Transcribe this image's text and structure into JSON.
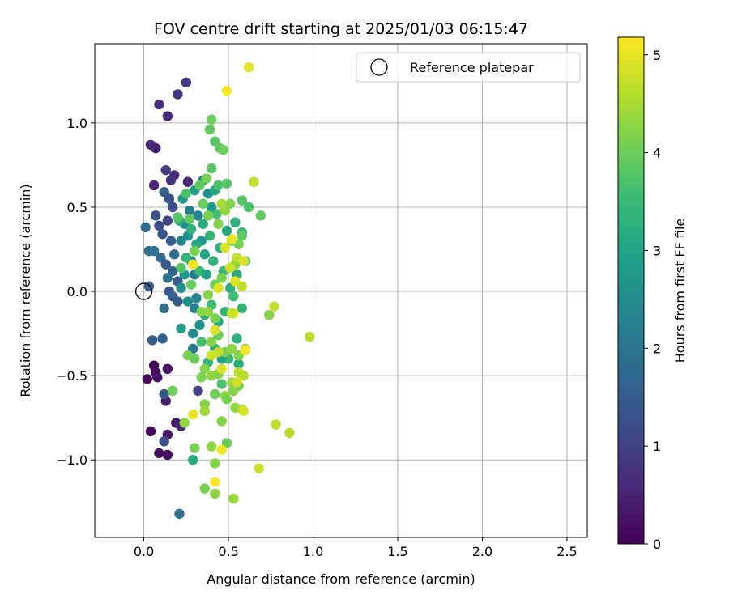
{
  "chart_data": {
    "type": "scatter",
    "title": "FOV centre drift starting at 2025/01/03 06:15:47",
    "xlabel": "Angular distance from reference (arcmin)",
    "ylabel": "Rotation from reference (arcmin)",
    "xlim": [
      -0.29,
      2.62
    ],
    "ylim": [
      -1.46,
      1.47
    ],
    "xticks": [
      0.0,
      0.5,
      1.0,
      1.5,
      2.0,
      2.5
    ],
    "xtick_labels": [
      "0.0",
      "0.5",
      "1.0",
      "1.5",
      "2.0",
      "2.5"
    ],
    "yticks": [
      -1.0,
      -0.5,
      0.0,
      0.5,
      1.0
    ],
    "ytick_labels": [
      "−1.0",
      "−0.5",
      "0.0",
      "0.5",
      "1.0"
    ],
    "grid": true,
    "legend": {
      "position": "top-right",
      "entries": [
        "Reference platepar"
      ]
    },
    "reference_point": {
      "x": 0.0,
      "y": 0.0,
      "marker": "open-circle",
      "label": "Reference platepar"
    },
    "colorbar": {
      "label": "Hours from first FF file",
      "min": 0,
      "max": 5.18,
      "ticks": [
        0,
        1,
        2,
        3,
        4,
        5
      ],
      "tick_labels": [
        "0",
        "1",
        "2",
        "3",
        "4",
        "5"
      ],
      "colormap": "viridis",
      "stops": [
        "#440154",
        "#482878",
        "#3e4a89",
        "#31688e",
        "#26828e",
        "#1f9e89",
        "#35b779",
        "#6ece58",
        "#b5de2b",
        "#fde725"
      ]
    },
    "points": [
      {
        "x": 0.02,
        "y": -0.52,
        "t": 0.1
      },
      {
        "x": 0.06,
        "y": -0.44,
        "t": 0.05
      },
      {
        "x": 0.07,
        "y": -0.48,
        "t": 0.15
      },
      {
        "x": 0.08,
        "y": -0.51,
        "t": 0.2
      },
      {
        "x": 0.14,
        "y": -0.46,
        "t": 0.25
      },
      {
        "x": 0.04,
        "y": -0.83,
        "t": 0.1
      },
      {
        "x": 0.09,
        "y": -0.96,
        "t": 0.15
      },
      {
        "x": 0.14,
        "y": -0.97,
        "t": 0.2
      },
      {
        "x": 0.14,
        "y": -0.85,
        "t": 0.3
      },
      {
        "x": 0.19,
        "y": -0.78,
        "t": 0.35
      },
      {
        "x": 0.13,
        "y": -0.65,
        "t": 0.4
      },
      {
        "x": 0.22,
        "y": -0.8,
        "t": 0.5
      },
      {
        "x": 0.12,
        "y": -0.89,
        "t": 1.2
      },
      {
        "x": 0.12,
        "y": -0.61,
        "t": 1.4
      },
      {
        "x": 0.21,
        "y": -1.32,
        "t": 1.9
      },
      {
        "x": 0.32,
        "y": -0.59,
        "t": 1.0
      },
      {
        "x": 0.05,
        "y": -0.29,
        "t": 1.5
      },
      {
        "x": 0.11,
        "y": -0.28,
        "t": 1.6
      },
      {
        "x": 0.04,
        "y": 0.87,
        "t": 0.6
      },
      {
        "x": 0.07,
        "y": 0.85,
        "t": 0.5
      },
      {
        "x": 0.09,
        "y": 1.11,
        "t": 0.7
      },
      {
        "x": 0.14,
        "y": 1.04,
        "t": 0.6
      },
      {
        "x": 0.2,
        "y": 1.17,
        "t": 0.8
      },
      {
        "x": 0.25,
        "y": 1.24,
        "t": 0.9
      },
      {
        "x": 0.06,
        "y": 0.63,
        "t": 0.6
      },
      {
        "x": 0.13,
        "y": 0.72,
        "t": 0.9
      },
      {
        "x": 0.16,
        "y": 0.66,
        "t": 0.8
      },
      {
        "x": 0.18,
        "y": 0.69,
        "t": 0.7
      },
      {
        "x": 0.26,
        "y": 0.65,
        "t": 0.6
      },
      {
        "x": 0.01,
        "y": 0.38,
        "t": 1.8
      },
      {
        "x": 0.03,
        "y": 0.24,
        "t": 1.9
      },
      {
        "x": 0.06,
        "y": 0.24,
        "t": 2.0
      },
      {
        "x": 0.07,
        "y": 0.45,
        "t": 1.3
      },
      {
        "x": 0.09,
        "y": 0.39,
        "t": 1.2
      },
      {
        "x": 0.11,
        "y": 0.34,
        "t": 1.4
      },
      {
        "x": 0.12,
        "y": 0.59,
        "t": 1.6
      },
      {
        "x": 0.14,
        "y": 0.42,
        "t": 1.1
      },
      {
        "x": 0.15,
        "y": 0.55,
        "t": 1.3
      },
      {
        "x": 0.16,
        "y": 0.3,
        "t": 1.5
      },
      {
        "x": 0.17,
        "y": 0.5,
        "t": 1.2
      },
      {
        "x": 0.1,
        "y": 0.2,
        "t": 1.7
      },
      {
        "x": 0.13,
        "y": 0.16,
        "t": 1.4
      },
      {
        "x": 0.17,
        "y": 0.12,
        "t": 1.6
      },
      {
        "x": 0.18,
        "y": 0.22,
        "t": 1.8
      },
      {
        "x": 0.2,
        "y": 0.06,
        "t": 1.5
      },
      {
        "x": 0.15,
        "y": 0.0,
        "t": 1.3
      },
      {
        "x": 0.17,
        "y": -0.03,
        "t": 1.6
      },
      {
        "x": 0.12,
        "y": -0.1,
        "t": 1.9
      },
      {
        "x": 0.2,
        "y": -0.06,
        "t": 1.4
      },
      {
        "x": 0.14,
        "y": 0.08,
        "t": 2.0
      },
      {
        "x": 0.03,
        "y": 0.03,
        "t": 1.6
      },
      {
        "x": 0.22,
        "y": 0.3,
        "t": 2.3
      },
      {
        "x": 0.24,
        "y": 0.4,
        "t": 2.5
      },
      {
        "x": 0.23,
        "y": 0.55,
        "t": 2.7
      },
      {
        "x": 0.26,
        "y": 0.33,
        "t": 2.6
      },
      {
        "x": 0.27,
        "y": 0.48,
        "t": 2.2
      },
      {
        "x": 0.28,
        "y": 0.18,
        "t": 2.4
      },
      {
        "x": 0.24,
        "y": 0.1,
        "t": 2.8
      },
      {
        "x": 0.3,
        "y": 0.6,
        "t": 2.9
      },
      {
        "x": 0.32,
        "y": 0.45,
        "t": 2.3
      },
      {
        "x": 0.34,
        "y": 0.3,
        "t": 2.7
      },
      {
        "x": 0.35,
        "y": 0.66,
        "t": 2.5
      },
      {
        "x": 0.36,
        "y": 0.22,
        "t": 3.0
      },
      {
        "x": 0.38,
        "y": 0.58,
        "t": 2.6
      },
      {
        "x": 0.4,
        "y": 0.5,
        "t": 2.8
      },
      {
        "x": 0.42,
        "y": 0.6,
        "t": 3.1
      },
      {
        "x": 0.26,
        "y": -0.06,
        "t": 2.6
      },
      {
        "x": 0.3,
        "y": -0.1,
        "t": 2.2
      },
      {
        "x": 0.22,
        "y": -0.22,
        "t": 2.9
      },
      {
        "x": 0.29,
        "y": -0.25,
        "t": 2.5
      },
      {
        "x": 0.33,
        "y": -0.2,
        "t": 2.7
      },
      {
        "x": 0.29,
        "y": -0.34,
        "t": 2.1
      },
      {
        "x": 0.31,
        "y": -0.04,
        "t": 2.4
      },
      {
        "x": 0.22,
        "y": 0.02,
        "t": 2.6
      },
      {
        "x": 0.3,
        "y": 0.1,
        "t": 2.1
      },
      {
        "x": 0.21,
        "y": 0.42,
        "t": 3.2
      },
      {
        "x": 0.25,
        "y": 0.2,
        "t": 3.4
      },
      {
        "x": 0.28,
        "y": 0.37,
        "t": 3.3
      },
      {
        "x": 0.31,
        "y": 0.28,
        "t": 3.1
      },
      {
        "x": 0.33,
        "y": 0.12,
        "t": 3.5
      },
      {
        "x": 0.35,
        "y": 0.4,
        "t": 3.2
      },
      {
        "x": 0.37,
        "y": 0.1,
        "t": 3.0
      },
      {
        "x": 0.39,
        "y": 0.33,
        "t": 3.4
      },
      {
        "x": 0.41,
        "y": 0.18,
        "t": 3.3
      },
      {
        "x": 0.43,
        "y": 0.46,
        "t": 3.6
      },
      {
        "x": 0.45,
        "y": 0.26,
        "t": 3.2
      },
      {
        "x": 0.47,
        "y": 0.12,
        "t": 3.5
      },
      {
        "x": 0.49,
        "y": 0.36,
        "t": 3.1
      },
      {
        "x": 0.51,
        "y": 0.02,
        "t": 3.3
      },
      {
        "x": 0.53,
        "y": -0.03,
        "t": 3.6
      },
      {
        "x": 0.48,
        "y": -0.12,
        "t": 3.4
      },
      {
        "x": 0.44,
        "y": -0.18,
        "t": 3.2
      },
      {
        "x": 0.4,
        "y": -0.08,
        "t": 3.5
      },
      {
        "x": 0.36,
        "y": -0.14,
        "t": 3.3
      },
      {
        "x": 0.34,
        "y": -0.3,
        "t": 3.6
      },
      {
        "x": 0.38,
        "y": -0.42,
        "t": 3.4
      },
      {
        "x": 0.42,
        "y": -0.34,
        "t": 3.2
      },
      {
        "x": 0.46,
        "y": -0.55,
        "t": 3.7
      },
      {
        "x": 0.5,
        "y": -0.4,
        "t": 3.5
      },
      {
        "x": 0.55,
        "y": -0.28,
        "t": 3.3
      },
      {
        "x": 0.58,
        "y": -0.1,
        "t": 3.4
      },
      {
        "x": 0.55,
        "y": 0.1,
        "t": 3.2
      },
      {
        "x": 0.6,
        "y": 0.18,
        "t": 3.6
      },
      {
        "x": 0.58,
        "y": 0.35,
        "t": 3.5
      },
      {
        "x": 0.54,
        "y": 0.41,
        "t": 3.3
      },
      {
        "x": 0.62,
        "y": 0.5,
        "t": 3.7
      },
      {
        "x": 0.58,
        "y": 0.54,
        "t": 3.8
      },
      {
        "x": 0.69,
        "y": 0.45,
        "t": 3.9
      },
      {
        "x": 0.29,
        "y": -1.0,
        "t": 3.1
      },
      {
        "x": 0.46,
        "y": -0.4,
        "t": 3.0
      },
      {
        "x": 0.56,
        "y": -0.43,
        "t": 3.2
      },
      {
        "x": 0.4,
        "y": 0.73,
        "t": 3.8
      },
      {
        "x": 0.44,
        "y": 0.63,
        "t": 3.7
      },
      {
        "x": 0.39,
        "y": 0.96,
        "t": 3.9
      },
      {
        "x": 0.42,
        "y": 0.89,
        "t": 3.8
      },
      {
        "x": 0.45,
        "y": 0.85,
        "t": 3.9
      },
      {
        "x": 0.47,
        "y": 0.84,
        "t": 4.0
      },
      {
        "x": 0.4,
        "y": 1.02,
        "t": 4.0
      },
      {
        "x": 0.49,
        "y": 0.64,
        "t": 3.8
      },
      {
        "x": 0.51,
        "y": 0.52,
        "t": 4.2
      },
      {
        "x": 0.37,
        "y": 0.67,
        "t": 4.1
      },
      {
        "x": 0.33,
        "y": 0.63,
        "t": 3.9
      },
      {
        "x": 0.25,
        "y": 0.58,
        "t": 3.7
      },
      {
        "x": 0.2,
        "y": 0.44,
        "t": 3.8
      },
      {
        "x": 0.27,
        "y": 0.43,
        "t": 3.9
      },
      {
        "x": 0.35,
        "y": 0.52,
        "t": 4.0
      },
      {
        "x": 0.38,
        "y": 0.45,
        "t": 4.1
      },
      {
        "x": 0.44,
        "y": 0.4,
        "t": 4.2
      },
      {
        "x": 0.48,
        "y": 0.48,
        "t": 4.3
      },
      {
        "x": 0.52,
        "y": 0.3,
        "t": 4.0
      },
      {
        "x": 0.56,
        "y": 0.28,
        "t": 4.1
      },
      {
        "x": 0.58,
        "y": 0.33,
        "t": 3.9
      },
      {
        "x": 0.54,
        "y": 0.16,
        "t": 4.3
      },
      {
        "x": 0.46,
        "y": 0.08,
        "t": 4.1
      },
      {
        "x": 0.42,
        "y": 0.04,
        "t": 4.0
      },
      {
        "x": 0.38,
        "y": -0.02,
        "t": 4.2
      },
      {
        "x": 0.28,
        "y": 0.04,
        "t": 4.0
      },
      {
        "x": 0.22,
        "y": 0.14,
        "t": 3.8
      },
      {
        "x": 0.3,
        "y": 0.24,
        "t": 4.1
      },
      {
        "x": 0.34,
        "y": -0.12,
        "t": 4.2
      },
      {
        "x": 0.38,
        "y": -0.12,
        "t": 4.3
      },
      {
        "x": 0.42,
        "y": -0.16,
        "t": 4.1
      },
      {
        "x": 0.4,
        "y": -0.3,
        "t": 4.2
      },
      {
        "x": 0.44,
        "y": -0.26,
        "t": 4.0
      },
      {
        "x": 0.48,
        "y": -0.36,
        "t": 4.1
      },
      {
        "x": 0.52,
        "y": -0.34,
        "t": 4.3
      },
      {
        "x": 0.56,
        "y": -0.38,
        "t": 4.2
      },
      {
        "x": 0.6,
        "y": -0.34,
        "t": 4.4
      },
      {
        "x": 0.26,
        "y": -0.38,
        "t": 4.1
      },
      {
        "x": 0.3,
        "y": -0.4,
        "t": 4.0
      },
      {
        "x": 0.36,
        "y": -0.46,
        "t": 4.2
      },
      {
        "x": 0.4,
        "y": -0.5,
        "t": 4.3
      },
      {
        "x": 0.34,
        "y": -0.51,
        "t": 4.1
      },
      {
        "x": 0.44,
        "y": -0.49,
        "t": 4.2
      },
      {
        "x": 0.52,
        "y": -0.54,
        "t": 4.4
      },
      {
        "x": 0.56,
        "y": -0.56,
        "t": 4.1
      },
      {
        "x": 0.48,
        "y": -0.62,
        "t": 4.3
      },
      {
        "x": 0.53,
        "y": -0.59,
        "t": 4.2
      },
      {
        "x": 0.42,
        "y": -0.61,
        "t": 4.0
      },
      {
        "x": 0.36,
        "y": -0.67,
        "t": 4.2
      },
      {
        "x": 0.49,
        "y": -0.64,
        "t": 4.1
      },
      {
        "x": 0.54,
        "y": -0.69,
        "t": 4.3
      },
      {
        "x": 0.58,
        "y": -0.7,
        "t": 4.5
      },
      {
        "x": 0.36,
        "y": -0.71,
        "t": 4.4
      },
      {
        "x": 0.46,
        "y": -0.77,
        "t": 4.2
      },
      {
        "x": 0.24,
        "y": -0.78,
        "t": 4.3
      },
      {
        "x": 0.17,
        "y": -0.59,
        "t": 4.0
      },
      {
        "x": 0.3,
        "y": -0.93,
        "t": 4.1
      },
      {
        "x": 0.4,
        "y": -0.92,
        "t": 4.3
      },
      {
        "x": 0.49,
        "y": -0.9,
        "t": 4.0
      },
      {
        "x": 0.42,
        "y": -1.02,
        "t": 4.2
      },
      {
        "x": 0.36,
        "y": -1.17,
        "t": 4.1
      },
      {
        "x": 0.42,
        "y": -1.2,
        "t": 4.3
      },
      {
        "x": 0.53,
        "y": -1.23,
        "t": 4.4
      },
      {
        "x": 0.74,
        "y": -0.14,
        "t": 4.2
      },
      {
        "x": 0.46,
        "y": 0.52,
        "t": 4.5
      },
      {
        "x": 0.48,
        "y": 0.26,
        "t": 4.9
      },
      {
        "x": 0.52,
        "y": 0.31,
        "t": 5.0
      },
      {
        "x": 0.55,
        "y": 0.2,
        "t": 4.7
      },
      {
        "x": 0.59,
        "y": 0.18,
        "t": 4.9
      },
      {
        "x": 0.29,
        "y": 0.16,
        "t": 5.1
      },
      {
        "x": 0.51,
        "y": 0.14,
        "t": 4.8
      },
      {
        "x": 0.54,
        "y": 0.06,
        "t": 4.9
      },
      {
        "x": 0.58,
        "y": 0.03,
        "t": 4.7
      },
      {
        "x": 0.44,
        "y": 0.02,
        "t": 4.9
      },
      {
        "x": 0.53,
        "y": -0.13,
        "t": 5.0
      },
      {
        "x": 0.52,
        "y": -0.13,
        "t": 4.8
      },
      {
        "x": 0.42,
        "y": -0.23,
        "t": 4.9
      },
      {
        "x": 0.44,
        "y": -0.36,
        "t": 4.7
      },
      {
        "x": 0.4,
        "y": -0.38,
        "t": 4.8
      },
      {
        "x": 0.46,
        "y": -0.46,
        "t": 4.9
      },
      {
        "x": 0.56,
        "y": -0.48,
        "t": 4.7
      },
      {
        "x": 0.55,
        "y": -0.54,
        "t": 4.8
      },
      {
        "x": 0.59,
        "y": -0.5,
        "t": 4.6
      },
      {
        "x": 0.6,
        "y": -0.35,
        "t": 5.1
      },
      {
        "x": 0.59,
        "y": -0.71,
        "t": 4.9
      },
      {
        "x": 0.29,
        "y": -0.73,
        "t": 5.0
      },
      {
        "x": 0.46,
        "y": -0.94,
        "t": 5.1
      },
      {
        "x": 0.42,
        "y": -1.13,
        "t": 5.2
      },
      {
        "x": 0.68,
        "y": -1.05,
        "t": 4.8
      },
      {
        "x": 0.78,
        "y": -0.79,
        "t": 4.7
      },
      {
        "x": 0.86,
        "y": -0.84,
        "t": 4.6
      },
      {
        "x": 0.98,
        "y": -0.27,
        "t": 4.6
      },
      {
        "x": 0.77,
        "y": -0.09,
        "t": 4.7
      },
      {
        "x": 0.65,
        "y": 0.65,
        "t": 4.7
      },
      {
        "x": 0.49,
        "y": 1.19,
        "t": 5.1
      },
      {
        "x": 0.62,
        "y": 1.33,
        "t": 5.0
      }
    ]
  }
}
